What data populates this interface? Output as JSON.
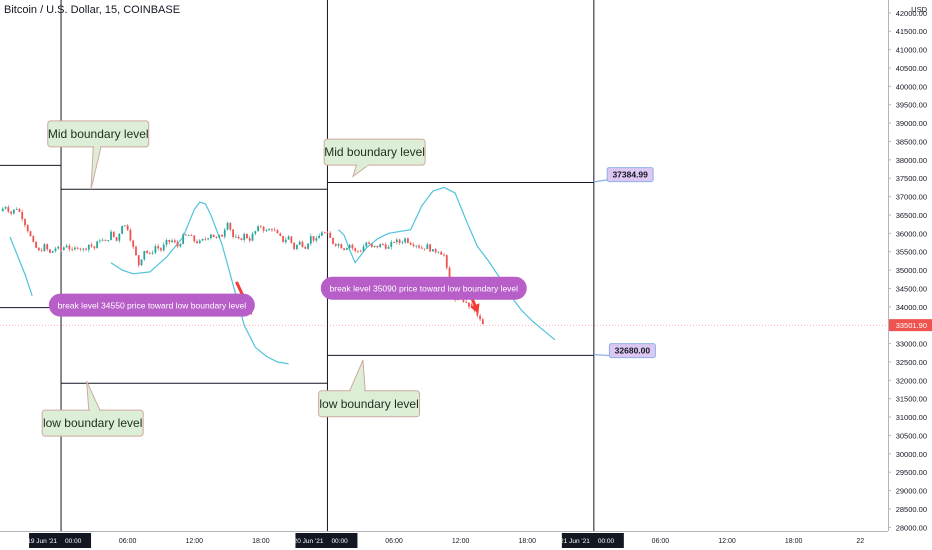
{
  "header": {
    "symbol": "Bitcoin / U.S. Dollar, 15, COINBASE"
  },
  "colors": {
    "up": "#26a69a",
    "down": "#ef5350",
    "wave": "#4fc3d9",
    "green_note_bg": "#dcefd6",
    "green_note_border": "#cfa9a0",
    "purple_note": "#b75ec9",
    "purple_tag_bg": "#dcc8f2",
    "purple_tag_border": "#8fb0e8",
    "arrow": "#f23c35",
    "price_tag": "#ef5350"
  },
  "chart_data": {
    "type": "candlestick",
    "currency": "USD",
    "ylim": [
      27900,
      42350
    ],
    "y_ticks": [
      "28000.00",
      "28500.00",
      "29000.00",
      "29500.00",
      "30000.00",
      "30500.00",
      "31000.00",
      "31500.00",
      "32000.00",
      "32500.00",
      "33000.00",
      "33500.00",
      "34000.00",
      "34500.00",
      "35000.00",
      "35500.00",
      "36000.00",
      "36500.00",
      "37000.00",
      "37500.00",
      "38000.00",
      "38500.00",
      "39000.00",
      "39500.00",
      "40000.00",
      "40500.00",
      "41000.00",
      "41500.00",
      "42000.00"
    ],
    "x_ticks": [
      {
        "label": "19 Jun '21",
        "t": 0,
        "boxed": true
      },
      {
        "label": "00:00",
        "t": 0,
        "boxed": true,
        "pair": true
      },
      {
        "label": "06:00",
        "t": 6
      },
      {
        "label": "12:00",
        "t": 12
      },
      {
        "label": "18:00",
        "t": 18
      },
      {
        "label": "20 Jun '21",
        "t": 24,
        "boxed": true
      },
      {
        "label": "00:00",
        "t": 24,
        "boxed": true,
        "pair": true
      },
      {
        "label": "06:00",
        "t": 30
      },
      {
        "label": "12:00",
        "t": 36
      },
      {
        "label": "18:00",
        "t": 42
      },
      {
        "label": "21 Jun '21",
        "t": 48,
        "boxed": true
      },
      {
        "label": "00:00",
        "t": 48,
        "boxed": true,
        "pair": true
      },
      {
        "label": "06:00",
        "t": 54
      },
      {
        "label": "12:00",
        "t": 60
      },
      {
        "label": "18:00",
        "t": 66
      },
      {
        "label": "22",
        "t": 72
      }
    ],
    "xlim": [
      -5.5,
      74.5
    ],
    "last_price": "33501.90",
    "price_path": [
      [
        -5.5,
        36600
      ],
      [
        -5,
        36750
      ],
      [
        -4.5,
        36550
      ],
      [
        -4,
        36700
      ],
      [
        -3.5,
        36450
      ],
      [
        -3,
        36100
      ],
      [
        -2.5,
        35700
      ],
      [
        -2,
        35500
      ],
      [
        -1.5,
        35650
      ],
      [
        -1,
        35450
      ],
      [
        -0.5,
        35600
      ],
      [
        0,
        35550
      ],
      [
        0.5,
        35700
      ],
      [
        1,
        35500
      ],
      [
        1.5,
        35650
      ],
      [
        2,
        35550
      ],
      [
        2.5,
        35700
      ],
      [
        3,
        35600
      ],
      [
        3.5,
        35850
      ],
      [
        4,
        35750
      ],
      [
        4.5,
        36000
      ],
      [
        5,
        35800
      ],
      [
        5.5,
        36250
      ],
      [
        6,
        36150
      ],
      [
        6.5,
        35600
      ],
      [
        7,
        35150
      ],
      [
        7.5,
        35550
      ],
      [
        8,
        35400
      ],
      [
        8.5,
        35650
      ],
      [
        9,
        35550
      ],
      [
        9.5,
        35750
      ],
      [
        10,
        35800
      ],
      [
        10.5,
        35650
      ],
      [
        11,
        35900
      ],
      [
        11.5,
        35950
      ],
      [
        12,
        35800
      ],
      [
        12.5,
        35750
      ],
      [
        13,
        35850
      ],
      [
        13.5,
        36000
      ],
      [
        14,
        35850
      ],
      [
        14.5,
        35950
      ],
      [
        15,
        36350
      ],
      [
        15.5,
        35900
      ],
      [
        16,
        35800
      ],
      [
        16.5,
        35950
      ],
      [
        17,
        35850
      ],
      [
        17.5,
        36050
      ],
      [
        18,
        36200
      ],
      [
        18.5,
        36050
      ],
      [
        19,
        36150
      ],
      [
        19.5,
        35950
      ],
      [
        20,
        35800
      ],
      [
        20.5,
        35900
      ],
      [
        21,
        35600
      ],
      [
        21.5,
        35750
      ],
      [
        22,
        35650
      ],
      [
        22.5,
        35900
      ],
      [
        23,
        35800
      ],
      [
        23.5,
        36050
      ],
      [
        24,
        35950
      ],
      [
        24.5,
        35750
      ],
      [
        25,
        35700
      ],
      [
        25.5,
        35600
      ],
      [
        26,
        35700
      ],
      [
        26.5,
        35500
      ],
      [
        27,
        35550
      ],
      [
        27.5,
        35750
      ],
      [
        28,
        35600
      ],
      [
        28.5,
        35650
      ],
      [
        29,
        35700
      ],
      [
        29.5,
        35600
      ],
      [
        30,
        35800
      ],
      [
        30.5,
        35750
      ],
      [
        31,
        35850
      ],
      [
        31.5,
        35750
      ],
      [
        32,
        35700
      ],
      [
        32.5,
        35600
      ],
      [
        33,
        35650
      ],
      [
        33.5,
        35500
      ],
      [
        34,
        35550
      ],
      [
        34.5,
        35400
      ],
      [
        35,
        34600
      ],
      [
        35.5,
        34150
      ],
      [
        36,
        34250
      ],
      [
        36.5,
        34050
      ],
      [
        37,
        34000
      ],
      [
        37.5,
        33750
      ],
      [
        38,
        33501.9
      ]
    ],
    "price_path_down_segments": [
      [
        35,
        38
      ]
    ],
    "wave_1": [
      [
        -4.6,
        35900
      ],
      [
        -3.8,
        35300
      ],
      [
        -3.2,
        34850
      ],
      [
        -2.6,
        34300
      ],
      [
        4.5,
        35200
      ],
      [
        5.5,
        35000
      ],
      [
        6.5,
        34900
      ],
      [
        8,
        34950
      ],
      [
        9.5,
        35350
      ],
      [
        11,
        35900
      ],
      [
        12,
        36650
      ],
      [
        12.5,
        36850
      ],
      [
        13,
        36800
      ],
      [
        13.5,
        36500
      ],
      [
        14.5,
        35700
      ],
      [
        15.5,
        34600
      ],
      [
        16.5,
        33500
      ],
      [
        17.5,
        32900
      ],
      [
        18.5,
        32650
      ],
      [
        19.5,
        32500
      ],
      [
        20.5,
        32450
      ]
    ],
    "wave_2": [
      [
        25,
        36100
      ],
      [
        25.5,
        35950
      ],
      [
        26,
        35550
      ],
      [
        26.5,
        35200
      ],
      [
        27.5,
        35600
      ],
      [
        28.5,
        35850
      ],
      [
        29.5,
        36000
      ],
      [
        31.5,
        36100
      ],
      [
        32.5,
        36750
      ],
      [
        33.5,
        37150
      ],
      [
        34.5,
        37250
      ],
      [
        35.5,
        37100
      ],
      [
        36.5,
        36350
      ],
      [
        37.5,
        35650
      ],
      [
        38.5,
        35250
      ],
      [
        39.5,
        34800
      ],
      [
        40.5,
        34300
      ],
      [
        41.5,
        33900
      ],
      [
        42.5,
        33600
      ],
      [
        43.5,
        33350
      ],
      [
        44.5,
        33100
      ]
    ],
    "levels": [
      {
        "t1": -5.5,
        "t2": 0,
        "price": 37850
      },
      {
        "t1": 0,
        "t2": 24,
        "price": 37200
      },
      {
        "t1": -5.5,
        "t2": 0,
        "price": 33980
      },
      {
        "t1": 0,
        "t2": 24,
        "price": 31920
      },
      {
        "t1": 24,
        "t2": 48,
        "price": 37384.99
      },
      {
        "t1": 24,
        "t2": 48,
        "price": 32680
      }
    ],
    "vlines": [
      0,
      24,
      48
    ],
    "annotations": [
      {
        "kind": "green",
        "text": "Mid boundary level",
        "box": {
          "t": -1.2,
          "price": 39060
        },
        "tail": {
          "t": 2.7,
          "price": 37200
        },
        "tail_base": [
          2.9,
          3.6
        ]
      },
      {
        "kind": "green",
        "text": "Mid boundary level",
        "box": {
          "t": 23.7,
          "price": 38565
        },
        "tail": {
          "t": 26.3,
          "price": 37550
        },
        "tail_base": [
          26.6,
          27.7
        ]
      },
      {
        "kind": "green",
        "text": "low boundary level",
        "box": {
          "t": -1.7,
          "price": 31190
        },
        "tail": {
          "t": 2.3,
          "price": 31980
        },
        "tail_base": [
          2.5,
          3.5
        ]
      },
      {
        "kind": "green",
        "text": "low boundary level",
        "box": {
          "t": 23.2,
          "price": 31715
        },
        "tail": {
          "t": 27.2,
          "price": 32550
        },
        "tail_base": [
          26.0,
          27.4
        ]
      },
      {
        "kind": "purple",
        "text": "break level 34550 price toward low boundary level",
        "box": {
          "t": -1.1,
          "price": 34360
        },
        "tail": {
          "t": 1.2,
          "price": 34040
        },
        "tail_base": [
          1.0,
          2.2
        ]
      },
      {
        "kind": "purple",
        "text": "break level 35090 price toward low boundary level",
        "box": {
          "t": 23.4,
          "price": 34820
        },
        "tail": {
          "t": 25.8,
          "price": 34710
        },
        "tail_base": [
          25.7,
          26.7
        ]
      },
      {
        "kind": "tag",
        "text": "37384.99",
        "box": {
          "t": 49.2,
          "price": 37790
        },
        "tail": {
          "t": 48,
          "price": 37400
        }
      },
      {
        "kind": "tag",
        "text": "32680.00",
        "box": {
          "t": 49.4,
          "price": 33000
        },
        "tail": {
          "t": 48,
          "price": 32700
        }
      }
    ],
    "arrows": [
      {
        "from": {
          "t": 15.8,
          "price": 34680
        },
        "to": {
          "t": 17.2,
          "price": 33780
        }
      },
      {
        "from": {
          "t": 36.5,
          "price": 34600
        },
        "to": {
          "t": 37.6,
          "price": 33820
        }
      }
    ]
  }
}
